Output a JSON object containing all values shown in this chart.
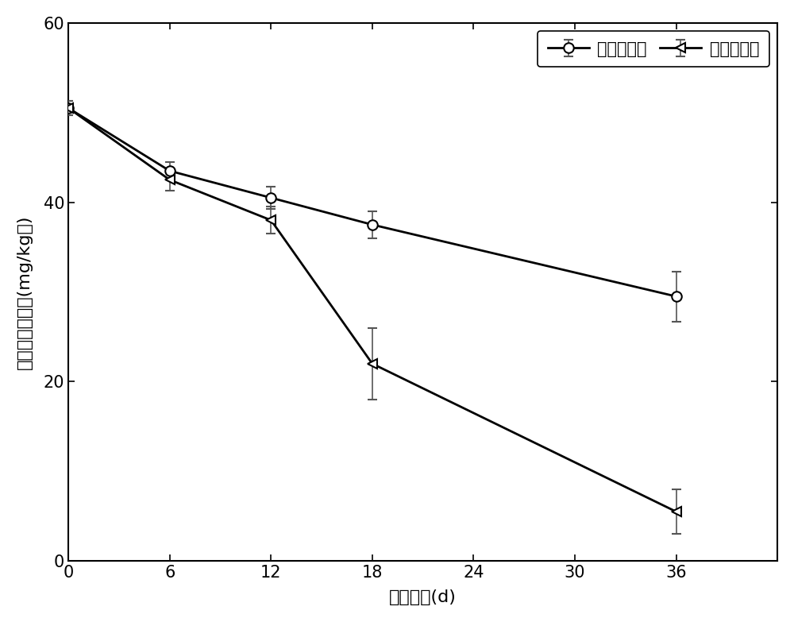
{
  "title": "",
  "xlabel": "降解时间(d)",
  "ylabel": "土壤中芹残留量(mg/kg土)",
  "xlim": [
    0,
    42
  ],
  "ylim": [
    0,
    60
  ],
  "xticks": [
    0,
    6,
    12,
    18,
    24,
    30,
    36
  ],
  "yticks": [
    0,
    20,
    40,
    60
  ],
  "series": [
    {
      "label": "游离菌对照",
      "x": [
        0,
        6,
        12,
        18,
        36
      ],
      "y": [
        50.5,
        43.5,
        40.5,
        37.5,
        29.5
      ],
      "yerr": [
        0.8,
        1.0,
        1.2,
        1.5,
        2.8
      ],
      "marker": "o",
      "color": "#000000",
      "markersize": 9,
      "linewidth": 2.0,
      "markerfacecolor": "#ffffff",
      "markeredgecolor": "#000000",
      "markeredgewidth": 1.5
    },
    {
      "label": "本发明菌剂",
      "x": [
        0,
        6,
        12,
        18,
        36
      ],
      "y": [
        50.5,
        42.5,
        38.0,
        22.0,
        5.5
      ],
      "yerr": [
        0.8,
        1.2,
        1.5,
        4.0,
        2.5
      ],
      "marker": "<",
      "color": "#000000",
      "markersize": 9,
      "linewidth": 2.0,
      "markerfacecolor": "#ffffff",
      "markeredgecolor": "#000000",
      "markeredgewidth": 1.5
    }
  ],
  "legend_loc": "upper right",
  "figsize": [
    10.0,
    7.83
  ],
  "dpi": 100,
  "background_color": "#ffffff",
  "errorbar_capsize": 4,
  "errorbar_color": "#555555"
}
